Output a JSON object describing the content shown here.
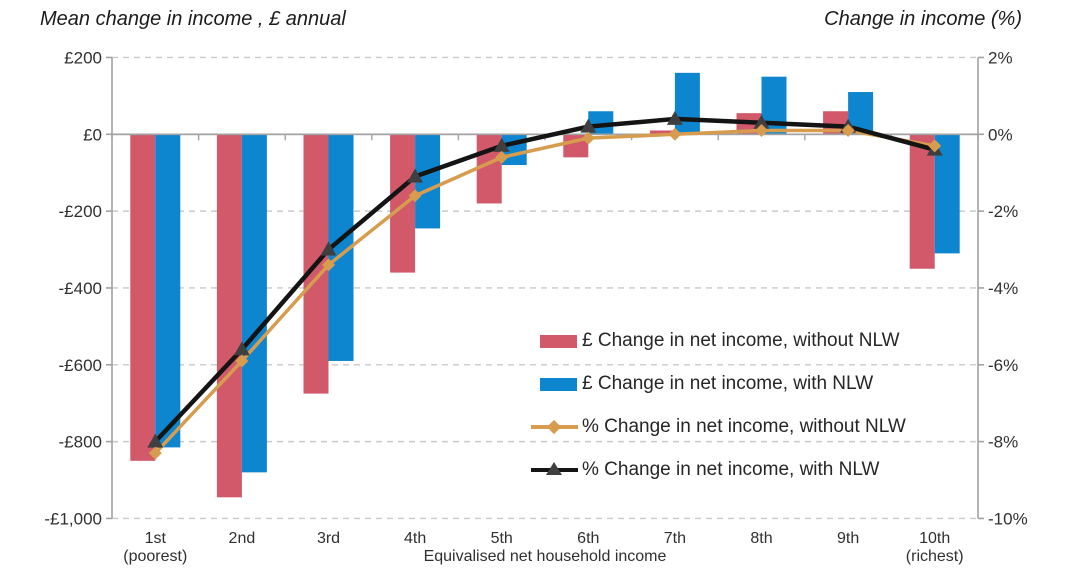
{
  "titles": {
    "left": "Mean change in income , £ annual",
    "right": "Change in income (%)"
  },
  "chart_data": {
    "type": "bar",
    "subtype": "grouped bars with two overlay lines, dual y-axes",
    "categories": [
      "1st",
      "2nd",
      "3rd",
      "4th",
      "5th",
      "6th",
      "7th",
      "8th",
      "9th",
      "10th"
    ],
    "category_sublabels": {
      "0": "(poorest)",
      "9": "(richest)"
    },
    "xlabel": "Equivalised net household income",
    "left_axis": {
      "title": "Mean change in income , £ annual",
      "tick_labels": [
        "£200",
        "£0",
        "-£200",
        "-£400",
        "-£600",
        "-£800",
        "-£1,000"
      ],
      "tick_values": [
        200,
        0,
        -200,
        -400,
        -600,
        -800,
        -1000
      ],
      "range": [
        -1000,
        200
      ]
    },
    "right_axis": {
      "title": "Change in income (%)",
      "tick_labels": [
        "2%",
        "0%",
        "-2%",
        "-4%",
        "-6%",
        "-8%",
        "-10%"
      ],
      "tick_values": [
        2,
        0,
        -2,
        -4,
        -6,
        -8,
        -10
      ],
      "range": [
        -10,
        2
      ]
    },
    "series": [
      {
        "name": "£ Change in net income, without NLW",
        "type": "bar",
        "axis": "left",
        "color": "#d2596a",
        "values": [
          -850,
          -945,
          -675,
          -360,
          -180,
          -60,
          10,
          55,
          60,
          -350
        ]
      },
      {
        "name": "£ Change in net income, with NLW",
        "type": "bar",
        "axis": "left",
        "color": "#0d86cf",
        "values": [
          -815,
          -880,
          -590,
          -245,
          -80,
          60,
          160,
          150,
          110,
          -310
        ]
      },
      {
        "name": "% Change in net income, without NLW",
        "type": "line",
        "marker": "diamond",
        "axis": "right",
        "color": "#d79c4e",
        "marker_color": "#d79c4e",
        "values": [
          -8.3,
          -5.9,
          -3.4,
          -1.6,
          -0.6,
          -0.1,
          0.0,
          0.1,
          0.1,
          -0.3
        ]
      },
      {
        "name": "% Change in net income, with NLW",
        "type": "line",
        "marker": "triangle",
        "axis": "right",
        "color": "#141414",
        "marker_color": "#3f3f3f",
        "values": [
          -8.0,
          -5.6,
          -3.0,
          -1.1,
          -0.3,
          0.2,
          0.4,
          0.3,
          0.2,
          -0.4
        ]
      }
    ],
    "legend_position": "inside lower-right",
    "grid": "horizontal dashed",
    "colors": {
      "gridline": "#c9c9c9",
      "axis_line": "#a2a2a2",
      "tick_text": "#303030"
    }
  }
}
